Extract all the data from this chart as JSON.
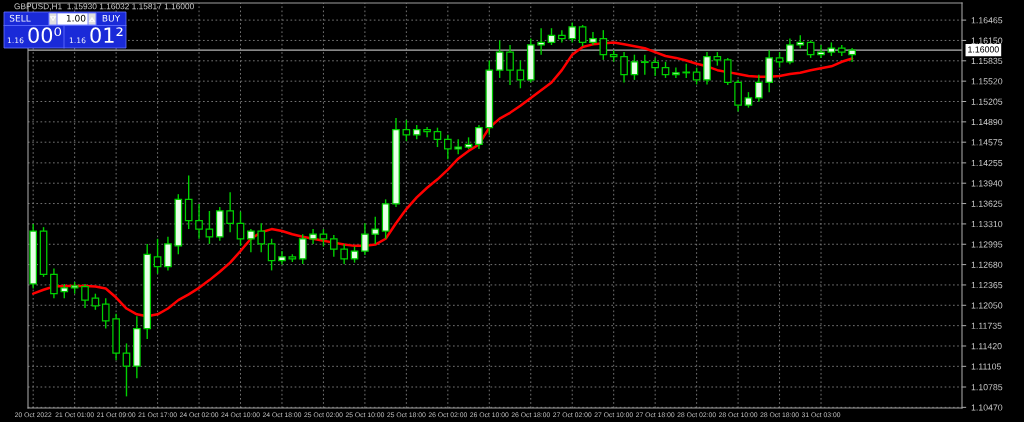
{
  "chart_data": {
    "type": "candlestick",
    "title": "GBPUSD,H1  1.15930 1.16032 1.15817 1.16000",
    "categories": [
      "20 Oct 2022",
      null,
      null,
      null,
      "21 Oct 01:00",
      null,
      null,
      null,
      "21 Oct 09:00",
      null,
      null,
      null,
      "21 Oct 17:00",
      null,
      null,
      null,
      "24 Oct 02:00",
      null,
      null,
      null,
      "24 Oct 10:00",
      null,
      null,
      null,
      "24 Oct 18:00",
      null,
      null,
      null,
      "25 Oct 02:00",
      null,
      null,
      null,
      "25 Oct 10:00",
      null,
      null,
      null,
      "25 Oct 18:00",
      null,
      null,
      null,
      "26 Oct 02:00",
      null,
      null,
      null,
      "26 Oct 10:00",
      null,
      null,
      null,
      "26 Oct 18:00",
      null,
      null,
      null,
      "27 Oct 02:00",
      null,
      null,
      null,
      "27 Oct 10:00",
      null,
      null,
      null,
      "27 Oct 18:00",
      null,
      null,
      null,
      "28 Oct 02:00",
      null,
      null,
      null,
      "28 Oct 10:00",
      null,
      null,
      null,
      "28 Oct 18:00",
      null,
      null,
      null,
      "31 Oct 03:00",
      null,
      null,
      null
    ],
    "series": [
      {
        "type": "candlestick",
        "color": "#00d000",
        "ohlc": [
          [
            1.1238,
            1.1331,
            1.1231,
            1.132
          ],
          [
            1.132,
            1.1326,
            1.1249,
            1.1253
          ],
          [
            1.1253,
            1.1262,
            1.1216,
            1.1223
          ],
          [
            1.1226,
            1.1238,
            1.1216,
            1.1232
          ],
          [
            1.1232,
            1.1241,
            1.1223,
            1.1235
          ],
          [
            1.1234,
            1.1238,
            1.1201,
            1.1213
          ],
          [
            1.1216,
            1.1223,
            1.1198,
            1.1204
          ],
          [
            1.1207,
            1.1216,
            1.1169,
            1.1181
          ],
          [
            1.1184,
            1.1192,
            1.112,
            1.1131
          ],
          [
            1.1131,
            1.1146,
            1.1064,
            1.1111
          ],
          [
            1.1111,
            1.1188,
            1.1092,
            1.1169
          ],
          [
            1.1169,
            1.13,
            1.1153,
            1.1284
          ],
          [
            1.128,
            1.1308,
            1.1254,
            1.1265
          ],
          [
            1.1265,
            1.1311,
            1.1259,
            1.13
          ],
          [
            1.1297,
            1.1377,
            1.1284,
            1.1369
          ],
          [
            1.1369,
            1.1406,
            1.1323,
            1.1336
          ],
          [
            1.1336,
            1.1362,
            1.1308,
            1.1323
          ],
          [
            1.1323,
            1.1351,
            1.13,
            1.1311
          ],
          [
            1.1311,
            1.1357,
            1.1305,
            1.1351
          ],
          [
            1.1351,
            1.138,
            1.1318,
            1.1332
          ],
          [
            1.1332,
            1.135,
            1.1297,
            1.1308
          ],
          [
            1.1308,
            1.1323,
            1.1287,
            1.132
          ],
          [
            1.132,
            1.1332,
            1.1287,
            1.13
          ],
          [
            1.13,
            1.1308,
            1.1259,
            1.1274
          ],
          [
            1.1274,
            1.1289,
            1.1268,
            1.128
          ],
          [
            1.128,
            1.1284,
            1.1272,
            1.1277
          ],
          [
            1.1277,
            1.1315,
            1.1269,
            1.1308
          ],
          [
            1.1308,
            1.1323,
            1.13,
            1.1315
          ],
          [
            1.1315,
            1.1323,
            1.1296,
            1.1308
          ],
          [
            1.1308,
            1.1314,
            1.128,
            1.1292
          ],
          [
            1.1292,
            1.13,
            1.1269,
            1.1277
          ],
          [
            1.1277,
            1.1296,
            1.1271,
            1.1289
          ],
          [
            1.1289,
            1.1332,
            1.1283,
            1.1315
          ],
          [
            1.1315,
            1.1342,
            1.13,
            1.1323
          ],
          [
            1.132,
            1.1369,
            1.1308,
            1.1362
          ],
          [
            1.1362,
            1.1495,
            1.1357,
            1.1477
          ],
          [
            1.1477,
            1.1492,
            1.1459,
            1.1469
          ],
          [
            1.1469,
            1.1484,
            1.1462,
            1.1477
          ],
          [
            1.1477,
            1.1481,
            1.1465,
            1.1474
          ],
          [
            1.1474,
            1.148,
            1.145,
            1.1462
          ],
          [
            1.1462,
            1.1469,
            1.1431,
            1.1447
          ],
          [
            1.1447,
            1.1462,
            1.1439,
            1.145
          ],
          [
            1.145,
            1.1465,
            1.1447,
            1.1454
          ],
          [
            1.1454,
            1.1484,
            1.1447,
            1.148
          ],
          [
            1.148,
            1.1584,
            1.1469,
            1.1569
          ],
          [
            1.1569,
            1.1615,
            1.1557,
            1.1597
          ],
          [
            1.1597,
            1.1608,
            1.1546,
            1.1569
          ],
          [
            1.1569,
            1.1584,
            1.1541,
            1.1554
          ],
          [
            1.1554,
            1.1618,
            1.155,
            1.1608
          ],
          [
            1.1608,
            1.1634,
            1.1593,
            1.1612
          ],
          [
            1.1612,
            1.1634,
            1.1608,
            1.1623
          ],
          [
            1.1623,
            1.1631,
            1.1612,
            1.1618
          ],
          [
            1.1618,
            1.1643,
            1.1612,
            1.1636
          ],
          [
            1.1636,
            1.1639,
            1.1606,
            1.1612
          ],
          [
            1.1612,
            1.1628,
            1.1608,
            1.1618
          ],
          [
            1.1618,
            1.1631,
            1.1585,
            1.1593
          ],
          [
            1.1593,
            1.16,
            1.1582,
            1.159
          ],
          [
            1.159,
            1.1597,
            1.155,
            1.1562
          ],
          [
            1.1562,
            1.1593,
            1.1554,
            1.1582
          ],
          [
            1.1582,
            1.1593,
            1.1562,
            1.1581
          ],
          [
            1.1581,
            1.1588,
            1.156,
            1.1573
          ],
          [
            1.1573,
            1.1582,
            1.1557,
            1.1562
          ],
          [
            1.1562,
            1.1573,
            1.1557,
            1.1565
          ],
          [
            1.1565,
            1.1579,
            1.1557,
            1.1566
          ],
          [
            1.1566,
            1.1573,
            1.1547,
            1.1554
          ],
          [
            1.1554,
            1.1597,
            1.1547,
            1.159
          ],
          [
            1.159,
            1.1597,
            1.1576,
            1.1585
          ],
          [
            1.1585,
            1.1588,
            1.1546,
            1.155
          ],
          [
            1.155,
            1.1554,
            1.1505,
            1.1515
          ],
          [
            1.1515,
            1.1535,
            1.1511,
            1.1526
          ],
          [
            1.1526,
            1.1562,
            1.152,
            1.155
          ],
          [
            1.155,
            1.16,
            1.1535,
            1.1588
          ],
          [
            1.1588,
            1.1597,
            1.1573,
            1.1582
          ],
          [
            1.1582,
            1.1618,
            1.1578,
            1.1608
          ],
          [
            1.1608,
            1.1623,
            1.1603,
            1.1612
          ],
          [
            1.1612,
            1.1615,
            1.1588,
            1.1593
          ],
          [
            1.1593,
            1.1608,
            1.1588,
            1.1597
          ],
          [
            1.1597,
            1.1612,
            1.1591,
            1.1603
          ],
          [
            1.1603,
            1.1608,
            1.1591,
            1.1597
          ],
          [
            1.1593,
            1.16032,
            1.15817,
            1.16
          ]
        ]
      },
      {
        "type": "line",
        "color": "#ff0000",
        "values": [
          1.1223,
          1.1229,
          1.1234,
          1.1235,
          1.1235,
          1.1235,
          1.1234,
          1.1231,
          1.1217,
          1.12,
          1.1191,
          1.1188,
          1.1191,
          1.12,
          1.1213,
          1.1222,
          1.1232,
          1.1244,
          1.1257,
          1.1271,
          1.1289,
          1.1308,
          1.1318,
          1.1323,
          1.132,
          1.1315,
          1.1311,
          1.1308,
          1.1305,
          1.1302,
          1.1299,
          1.1297,
          1.1297,
          1.1299,
          1.1308,
          1.1332,
          1.1354,
          1.1372,
          1.1387,
          1.14,
          1.1415,
          1.1432,
          1.1444,
          1.1454,
          1.148,
          1.1494,
          1.1503,
          1.1514,
          1.1526,
          1.1538,
          1.155,
          1.1569,
          1.1593,
          1.1605,
          1.1609,
          null,
          1.1612,
          1.1609,
          1.1606,
          1.1603,
          1.1597,
          1.1591,
          1.1588,
          1.1584,
          1.1579,
          1.1575,
          1.1569,
          1.1566,
          1.1563,
          1.156,
          1.1559,
          1.1559,
          1.156,
          1.1563,
          1.1565,
          1.1569,
          1.1572,
          1.1575,
          1.1582,
          1.1587
        ]
      }
    ],
    "ylim": [
      1.1046,
      1.1673
    ],
    "yticks": [
      {
        "value": 1.1047,
        "label": "1.10470"
      },
      {
        "value": 1.10785,
        "label": "1.10785"
      },
      {
        "value": 1.11105,
        "label": "1.11105"
      },
      {
        "value": 1.1142,
        "label": "1.11420"
      },
      {
        "value": 1.11735,
        "label": "1.11735"
      },
      {
        "value": 1.1205,
        "label": "1.12050"
      },
      {
        "value": 1.12365,
        "label": "1.12365"
      },
      {
        "value": 1.1268,
        "label": "1.12680"
      },
      {
        "value": 1.12995,
        "label": "1.12995"
      },
      {
        "value": 1.1331,
        "label": "1.13310"
      },
      {
        "value": 1.13625,
        "label": "1.13625"
      },
      {
        "value": 1.1394,
        "label": "1.13940"
      },
      {
        "value": 1.14255,
        "label": "1.14255"
      },
      {
        "value": 1.14575,
        "label": "1.14575"
      },
      {
        "value": 1.1489,
        "label": "1.14890"
      },
      {
        "value": 1.15205,
        "label": "1.15205"
      },
      {
        "value": 1.1552,
        "label": "1.15520"
      },
      {
        "value": 1.15835,
        "label": "1.15835"
      },
      {
        "value": 1.1615,
        "label": "1.16150"
      },
      {
        "value": 1.16465,
        "label": "1.16465"
      }
    ],
    "ref_lines": [
      {
        "axis": "y",
        "value": 1.16,
        "label": "1.16000",
        "color": "#b4b4b4"
      }
    ],
    "annotations": [
      "SELL",
      "1.00",
      "BUY",
      "1.16",
      "00⁰",
      "1.16",
      "01²"
    ],
    "grid": true,
    "legend": false
  }
}
